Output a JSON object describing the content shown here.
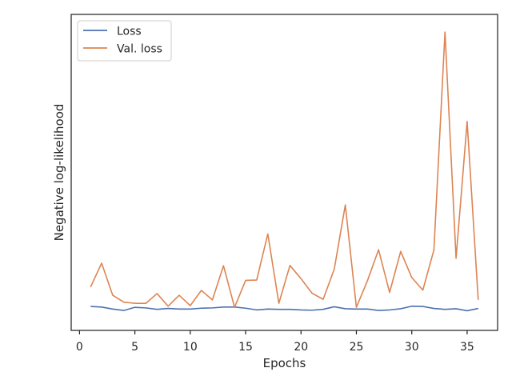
{
  "chart_data": {
    "type": "line",
    "title": "",
    "xlabel": "Epochs",
    "ylabel": "Negative log-likelihood",
    "x": [
      1,
      2,
      3,
      4,
      5,
      6,
      7,
      8,
      9,
      10,
      11,
      12,
      13,
      14,
      15,
      16,
      17,
      18,
      19,
      20,
      21,
      22,
      23,
      24,
      25,
      26,
      27,
      28,
      29,
      30,
      31,
      32,
      33,
      34,
      35,
      36
    ],
    "xlim": [
      -0.75,
      37.75
    ],
    "xticks": [
      0,
      5,
      10,
      15,
      20,
      25,
      30,
      35
    ],
    "ylim": [
      0,
      100
    ],
    "yticks_shown": false,
    "grid": false,
    "legend_placement": "top-left",
    "series": [
      {
        "name": "Loss",
        "color": "#4c72b0",
        "values": [
          4.3,
          4.1,
          3.4,
          2.9,
          4.0,
          3.8,
          3.3,
          3.6,
          3.4,
          3.4,
          3.7,
          3.8,
          4.1,
          4.1,
          3.7,
          3.1,
          3.4,
          3.3,
          3.3,
          3.1,
          3.0,
          3.3,
          4.2,
          3.5,
          3.4,
          3.4,
          2.9,
          3.1,
          3.5,
          4.4,
          4.3,
          3.6,
          3.3,
          3.5,
          2.8,
          3.6
        ]
      },
      {
        "name": "Val. loss",
        "color": "#dd8452",
        "values": [
          11.1,
          19.4,
          8.2,
          5.8,
          5.4,
          5.4,
          8.8,
          4.4,
          8.2,
          4.6,
          9.9,
          6.6,
          18.5,
          4.0,
          13.4,
          13.5,
          29.6,
          5.4,
          18.6,
          14.0,
          8.9,
          6.8,
          17.3,
          39.7,
          4.0,
          13.3,
          24.1,
          9.2,
          23.5,
          14.4,
          10.0,
          24.0,
          100.0,
          21.1,
          68.8,
          6.6
        ]
      }
    ]
  }
}
